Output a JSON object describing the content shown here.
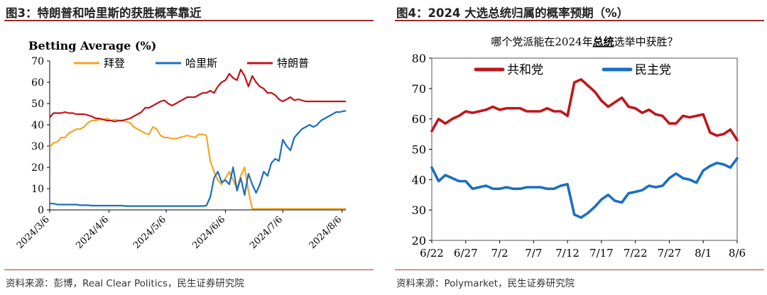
{
  "charts": [
    {
      "title": "图3：特朗普和哈里斯的获胜概率靠近",
      "source": "资料来源：彭博，Real Clear Politics，民生证券研究院"
    },
    {
      "title": "图4：2024 大选总统归属的概率预期（%）",
      "source": "资料来源：Polymarket，民生证券研究院"
    }
  ],
  "chart_data": [
    {
      "type": "line",
      "title": "Betting Average (%)",
      "xlabel": "",
      "ylabel": "Betting Average (%)",
      "ylim": [
        0,
        70
      ],
      "yticks": [
        0,
        10,
        20,
        30,
        40,
        50,
        60,
        70
      ],
      "grid": false,
      "legend_position": "top",
      "xticks": [
        "2024/3/6",
        "2024/4/6",
        "2024/5/6",
        "2024/6/6",
        "2024/7/6",
        "2024/8/6"
      ],
      "xrange": [
        "2024/3/6",
        "2024/8/6"
      ],
      "x_day_offsets": [
        0,
        2,
        4,
        6,
        8,
        10,
        12,
        14,
        16,
        18,
        20,
        22,
        24,
        26,
        28,
        30,
        32,
        34,
        36,
        38,
        40,
        42,
        44,
        46,
        48,
        50,
        52,
        54,
        56,
        58,
        60,
        62,
        64,
        66,
        68,
        70,
        72,
        74,
        76,
        78,
        80,
        82,
        84,
        86,
        88,
        90,
        92,
        94,
        96,
        98,
        100,
        102,
        104,
        106,
        108,
        110,
        112,
        114,
        116,
        118,
        120,
        122,
        124,
        126,
        128,
        130,
        132,
        134,
        136,
        138,
        140,
        142,
        144,
        146,
        148,
        150,
        152,
        154,
        155
      ],
      "series": [
        {
          "name": "拜登",
          "color": "#f5a623",
          "values": [
            29.5,
            31.5,
            32,
            34,
            34,
            36,
            37,
            38,
            38,
            39,
            41,
            42,
            42,
            42.5,
            42.5,
            43,
            42,
            42.5,
            42,
            42,
            41.5,
            41,
            39,
            38,
            37,
            36,
            35.5,
            39,
            38,
            35,
            34,
            34,
            33.5,
            33.5,
            34,
            34.5,
            35,
            34.5,
            34,
            35.5,
            35.5,
            35,
            23,
            18,
            14,
            12,
            15,
            18,
            14,
            10,
            16,
            20,
            9,
            0.5,
            0.5,
            0.5,
            0.5,
            0.5,
            0.5,
            0.5,
            0.5,
            0.5,
            0.5,
            0.5,
            0.5,
            0.5,
            0.5,
            0.5,
            0.5,
            0.5,
            0.5,
            0.5,
            0.5,
            0.5,
            0.5,
            0.5,
            0.5,
            0.5,
            0.5
          ]
        },
        {
          "name": "哈里斯",
          "color": "#1a6fc2",
          "values": [
            3,
            3,
            2.5,
            2.5,
            2.5,
            2.5,
            2.5,
            2.5,
            2.2,
            2.2,
            2.2,
            2,
            2,
            2,
            2,
            2,
            2,
            2,
            2,
            2,
            1.8,
            1.8,
            1.8,
            1.8,
            1.8,
            1.8,
            1.8,
            1.8,
            1.8,
            1.8,
            1.8,
            1.8,
            1.8,
            1.8,
            1.8,
            1.8,
            1.8,
            1.8,
            1.8,
            1.8,
            1.8,
            2,
            6,
            15,
            18,
            13,
            14,
            12,
            20,
            9,
            15,
            7,
            17,
            12,
            8,
            12,
            18,
            16,
            22,
            24,
            23,
            33,
            30,
            28,
            34,
            36,
            38,
            39,
            40,
            39,
            40,
            42,
            43,
            44,
            45,
            46,
            46,
            46.5,
            46.5
          ]
        },
        {
          "name": "特朗普",
          "color": "#c0151b",
          "values": [
            43.5,
            45.5,
            45.5,
            45.5,
            46,
            45.5,
            45.5,
            45,
            45,
            45,
            44.5,
            44,
            43,
            43,
            42.5,
            42,
            42,
            41.5,
            42,
            42,
            42.5,
            43,
            44,
            45,
            46,
            48,
            48,
            49,
            50,
            51,
            51.5,
            50,
            49,
            50,
            51,
            52,
            53,
            53,
            53,
            54,
            55,
            55,
            56,
            55,
            58,
            60,
            61,
            64,
            62,
            61,
            66,
            63,
            58,
            63,
            60,
            58,
            57,
            55,
            55,
            54,
            52,
            51,
            52,
            53,
            51.5,
            52,
            51.5,
            51,
            51,
            51,
            51,
            51,
            51,
            51,
            51,
            51,
            51,
            51,
            51
          ]
        }
      ]
    },
    {
      "type": "line",
      "title": "哪个党派能在2024年总统选举中获胜？",
      "title_emphasis": "总统",
      "xlabel": "",
      "ylabel": "",
      "ylim": [
        20,
        80
      ],
      "yticks": [
        20,
        30,
        40,
        50,
        60,
        70,
        80
      ],
      "grid": false,
      "legend_position": "top-left",
      "xticks": [
        "6/22",
        "6/27",
        "7/2",
        "7/7",
        "7/12",
        "7/17",
        "7/22",
        "7/27",
        "8/1",
        "8/6"
      ],
      "x": [
        "6/22",
        "6/23",
        "6/24",
        "6/25",
        "6/26",
        "6/27",
        "6/28",
        "6/29",
        "6/30",
        "7/1",
        "7/2",
        "7/3",
        "7/4",
        "7/5",
        "7/6",
        "7/7",
        "7/8",
        "7/9",
        "7/10",
        "7/11",
        "7/12",
        "7/13",
        "7/14",
        "7/15",
        "7/16",
        "7/17",
        "7/18",
        "7/19",
        "7/20",
        "7/21",
        "7/22",
        "7/23",
        "7/24",
        "7/25",
        "7/26",
        "7/27",
        "7/28",
        "7/29",
        "7/30",
        "7/31",
        "8/1",
        "8/2",
        "8/3",
        "8/4",
        "8/5",
        "8/6"
      ],
      "series": [
        {
          "name": "共和党",
          "color": "#c0151b",
          "values": [
            56,
            60,
            58.5,
            60,
            61,
            62.5,
            62,
            62.5,
            63,
            64,
            63,
            63.5,
            63.5,
            63.5,
            62.5,
            62.5,
            62.5,
            63.5,
            62.5,
            62.5,
            61,
            72,
            73,
            71,
            69,
            66,
            64,
            65.5,
            67,
            64,
            63.5,
            62,
            63,
            61.5,
            61,
            58.5,
            58.5,
            61,
            60.5,
            61,
            61.5,
            55.5,
            54.5,
            55,
            56.5,
            53
          ]
        },
        {
          "name": "民主党",
          "color": "#1a6fc2",
          "values": [
            44,
            39.5,
            41.5,
            40.5,
            39.5,
            39.5,
            37,
            37.5,
            38,
            37,
            37,
            37.5,
            37,
            37,
            37.5,
            37.5,
            37.5,
            37,
            37,
            38,
            38.5,
            28.5,
            27.5,
            29,
            31,
            33.5,
            35,
            33,
            32.5,
            35.5,
            36,
            36.5,
            38,
            37.5,
            38,
            40.5,
            42,
            40.5,
            40,
            39,
            43,
            44.5,
            45.5,
            45,
            44,
            47
          ]
        }
      ]
    }
  ]
}
